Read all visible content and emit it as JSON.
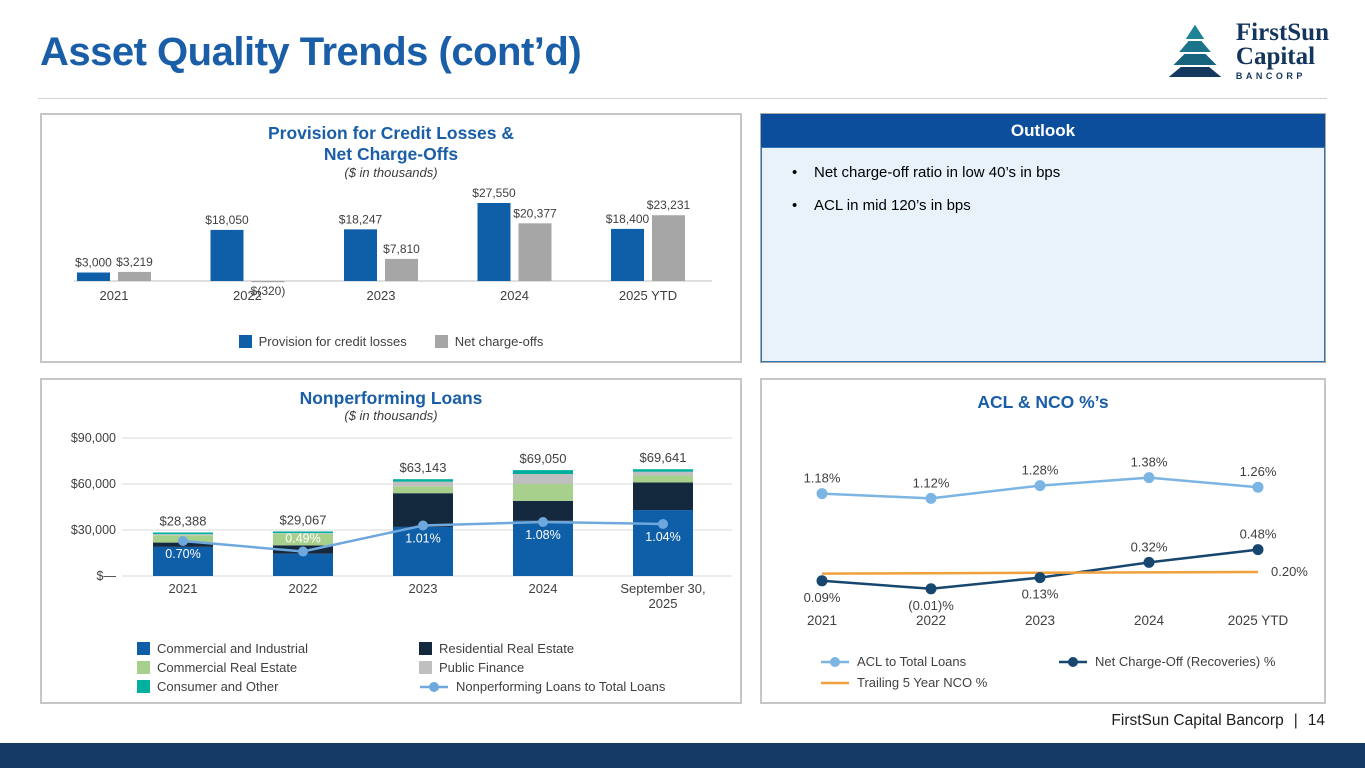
{
  "header": {
    "title": "Asset Quality Trends (cont’d)"
  },
  "logo": {
    "line1": "FirstSun",
    "line2": "Capital",
    "line3": "BANCORP"
  },
  "outlook": {
    "title": "Outlook",
    "bullets": [
      "Net charge-off ratio in low 40’s in bps",
      "ACL in mid 120’s in bps"
    ]
  },
  "footer": {
    "company": "FirstSun Capital Bancorp",
    "separator": "|",
    "page_number": "14"
  },
  "colors": {
    "title_blue": "#1A5EA8",
    "provision_blue": "#0E5FA8",
    "nco_gray": "#A6A6A6",
    "outlook_header_navy": "#0D4E9C",
    "outlook_body_blue": "#E9F2FB",
    "bottom_bar_navy": "#153A63"
  },
  "chart_data": [
    {
      "id": "provision",
      "type": "bar",
      "title_lines": [
        "Provision for Credit Losses &",
        "Net Charge-Offs"
      ],
      "subtitle": "($ in thousands)",
      "categories": [
        "2021",
        "2022",
        "2023",
        "2024",
        "2025 YTD"
      ],
      "ylim": [
        -500,
        28000
      ],
      "grid": false,
      "legend_position": "bottom",
      "series": [
        {
          "name": "Provision for credit losses",
          "color": "#0E5FA8",
          "values": [
            3000,
            18050,
            18247,
            27550,
            18400
          ],
          "labels": [
            "$3,000",
            "$18,050",
            "$18,247",
            "$27,550",
            "$18,400"
          ]
        },
        {
          "name": "Net charge-offs",
          "color": "#A6A6A6",
          "values": [
            3219,
            -320,
            7810,
            20377,
            23231
          ],
          "labels": [
            "$3,219",
            "$(320)",
            "$7,810",
            "$20,377",
            "$23,231"
          ]
        }
      ]
    },
    {
      "id": "nonperforming-loans",
      "type": "bar",
      "subtype": "stacked-bar-with-line",
      "title": "Nonperforming Loans",
      "subtitle": "($ in thousands)",
      "categories": [
        "2021",
        "2022",
        "2023",
        "2024",
        "September 30,\n2025"
      ],
      "ylim": [
        0,
        90000
      ],
      "grid": true,
      "legend_position": "bottom",
      "y_ticks": [
        {
          "v": 0,
          "label": "$—"
        },
        {
          "v": 30000,
          "label": "$30,000"
        },
        {
          "v": 60000,
          "label": "$60,000"
        },
        {
          "v": 90000,
          "label": "$90,000"
        }
      ],
      "totals": [
        28388,
        29067,
        63143,
        69050,
        69641
      ],
      "totals_labels": [
        "$28,388",
        "$29,067",
        "$63,143",
        "$69,050",
        "$69,641"
      ],
      "stack_series": [
        {
          "name": "Commercial and Industrial",
          "color": "#0E5FA8",
          "values": [
            19000,
            14500,
            32000,
            36000,
            43000
          ]
        },
        {
          "name": "Residential Real Estate",
          "color": "#15293E",
          "values": [
            2800,
            5500,
            22000,
            13000,
            18000
          ]
        },
        {
          "name": "Commercial Real Estate",
          "color": "#A8D08D",
          "values": [
            4800,
            7500,
            4500,
            11000,
            4500
          ]
        },
        {
          "name": "Public Finance",
          "color": "#BFBFBF",
          "values": [
            700,
            500,
            3000,
            6500,
            2500
          ]
        },
        {
          "name": "Consumer and Other",
          "color": "#00AF9D",
          "values": [
            1088,
            1067,
            1643,
            2550,
            1641
          ]
        }
      ],
      "line_series": {
        "name": "Nonperforming Loans to Total Loans",
        "color": "#6FA8DC",
        "values": [
          0.7,
          0.49,
          1.01,
          1.08,
          1.04
        ],
        "labels": [
          "0.70%",
          "0.49%",
          "1.01%",
          "1.08%",
          "1.04%"
        ],
        "label_pos": [
          "below",
          "above",
          "below",
          "below",
          "below"
        ]
      }
    },
    {
      "id": "acl-nco",
      "type": "line",
      "title": "ACL & NCO %’s",
      "categories": [
        "2021",
        "2022",
        "2023",
        "2024",
        "2025 YTD"
      ],
      "ylim": [
        -0.1,
        1.5
      ],
      "grid": false,
      "legend_position": "bottom",
      "series": [
        {
          "name": "ACL to Total Loans",
          "color": "#7CB5E3",
          "marker": true,
          "values": [
            1.18,
            1.12,
            1.28,
            1.38,
            1.26
          ],
          "labels": [
            "1.18%",
            "1.12%",
            "1.28%",
            "1.38%",
            "1.26%"
          ],
          "label_pos": [
            "above",
            "above",
            "above",
            "above",
            "above"
          ]
        },
        {
          "name": "Net Charge-Off (Recoveries) %",
          "color": "#17466F",
          "marker": true,
          "values": [
            0.09,
            -0.01,
            0.13,
            0.32,
            0.48
          ],
          "labels": [
            "0.09%",
            "(0.01)%",
            "0.13%",
            "0.32%",
            "0.48%"
          ],
          "label_pos": [
            "below",
            "below",
            "below",
            "above",
            "above"
          ]
        },
        {
          "name": "Trailing 5 Year NCO %",
          "color": "#F0A03C",
          "marker": false,
          "values": [
            0.18,
            0.185,
            0.19,
            0.195,
            0.2
          ],
          "labels": [
            "",
            "",
            "",
            "",
            "0.20%"
          ],
          "label_pos": [
            "right",
            "right",
            "right",
            "right",
            "right"
          ]
        }
      ]
    }
  ]
}
